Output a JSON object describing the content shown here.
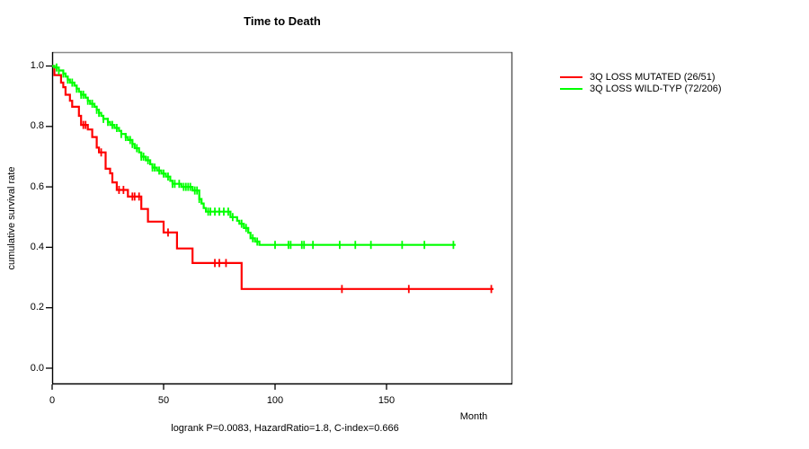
{
  "title": "Time to Death",
  "footer": "logrank P=0.0083, HazardRatio=1.8, C-index=0.666",
  "axes": {
    "x": {
      "label": "Month",
      "ticks": [
        0,
        50,
        100,
        150
      ]
    },
    "y": {
      "label": "cumulative survival rate",
      "ticks": [
        1.0,
        0.8,
        0.6,
        0.4,
        0.2,
        0.0
      ]
    }
  },
  "legend": {
    "items": [
      {
        "label": "3Q LOSS MUTATED (26/51)",
        "color": "#ff0000"
      },
      {
        "label": "3Q LOSS WILD-TYP (72/206)",
        "color": "#00ff00"
      }
    ]
  },
  "chart_data": {
    "type": "line",
    "subtype": "kaplan-meier-step",
    "title": "Time to Death",
    "xlabel": "Month",
    "ylabel": "cumulative survival rate",
    "xlim": [
      0,
      206
    ],
    "ylim": [
      0.0,
      1.0
    ],
    "grid": false,
    "legend_position": "right-outside",
    "frame_colors": {
      "top": "#8a8a8a",
      "right": "#555555",
      "bottom": "#000000",
      "left": "#000000"
    },
    "stats": {
      "logrank_p": 0.0083,
      "hazard_ratio": 1.8,
      "c_index": 0.666
    },
    "series": [
      {
        "name": "3Q LOSS MUTATED (26/51)",
        "events": 26,
        "n": 51,
        "color": "#ff0000",
        "steps": [
          [
            0,
            1.0
          ],
          [
            1,
            0.97
          ],
          [
            4,
            0.945
          ],
          [
            5,
            0.93
          ],
          [
            6,
            0.905
          ],
          [
            8,
            0.885
          ],
          [
            9,
            0.865
          ],
          [
            12,
            0.835
          ],
          [
            13,
            0.805
          ],
          [
            16,
            0.79
          ],
          [
            18,
            0.765
          ],
          [
            20,
            0.73
          ],
          [
            21,
            0.714
          ],
          [
            24,
            0.66
          ],
          [
            26,
            0.645
          ],
          [
            27,
            0.615
          ],
          [
            29,
            0.59
          ],
          [
            34,
            0.568
          ],
          [
            40,
            0.527
          ],
          [
            43,
            0.485
          ],
          [
            50,
            0.449
          ],
          [
            56,
            0.396
          ],
          [
            63,
            0.348
          ],
          [
            85,
            0.262
          ]
        ],
        "end_time": 198,
        "censor_times": [
          14,
          15,
          22,
          30,
          32,
          36,
          37,
          39,
          52,
          73,
          75,
          78,
          130,
          160,
          197
        ]
      },
      {
        "name": "3Q LOSS WILD-TYP (72/206)",
        "events": 72,
        "n": 206,
        "color": "#00ff00",
        "steps": [
          [
            0,
            1.0
          ],
          [
            1,
            0.995
          ],
          [
            3,
            0.985
          ],
          [
            5,
            0.975
          ],
          [
            6,
            0.965
          ],
          [
            7,
            0.955
          ],
          [
            8,
            0.945
          ],
          [
            10,
            0.935
          ],
          [
            11,
            0.925
          ],
          [
            12,
            0.915
          ],
          [
            13,
            0.905
          ],
          [
            15,
            0.895
          ],
          [
            16,
            0.885
          ],
          [
            17,
            0.875
          ],
          [
            19,
            0.865
          ],
          [
            20,
            0.855
          ],
          [
            21,
            0.845
          ],
          [
            22,
            0.835
          ],
          [
            23,
            0.825
          ],
          [
            25,
            0.815
          ],
          [
            26,
            0.805
          ],
          [
            28,
            0.795
          ],
          [
            30,
            0.785
          ],
          [
            31,
            0.775
          ],
          [
            33,
            0.765
          ],
          [
            34,
            0.755
          ],
          [
            36,
            0.742
          ],
          [
            37,
            0.728
          ],
          [
            39,
            0.714
          ],
          [
            40,
            0.7
          ],
          [
            42,
            0.688
          ],
          [
            44,
            0.675
          ],
          [
            45,
            0.664
          ],
          [
            47,
            0.654
          ],
          [
            49,
            0.644
          ],
          [
            51,
            0.634
          ],
          [
            53,
            0.62
          ],
          [
            54,
            0.61
          ],
          [
            58,
            0.6
          ],
          [
            63,
            0.588
          ],
          [
            66,
            0.56
          ],
          [
            67,
            0.545
          ],
          [
            68,
            0.53
          ],
          [
            69,
            0.518
          ],
          [
            80,
            0.5
          ],
          [
            83,
            0.488
          ],
          [
            84,
            0.478
          ],
          [
            86,
            0.464
          ],
          [
            88,
            0.448
          ],
          [
            89,
            0.43
          ],
          [
            91,
            0.419
          ],
          [
            93,
            0.408
          ]
        ],
        "end_time": 181,
        "censor_times": [
          2,
          3,
          5,
          7,
          9,
          11,
          13,
          14,
          16,
          18,
          20,
          21,
          23,
          25,
          27,
          29,
          31,
          33,
          35,
          36,
          38,
          40,
          41,
          43,
          45,
          46,
          48,
          50,
          52,
          54,
          55,
          57,
          59,
          60,
          61,
          62,
          64,
          65,
          66,
          70,
          71,
          73,
          75,
          77,
          79,
          81,
          85,
          87,
          90,
          92,
          100,
          106,
          107,
          112,
          113,
          117,
          129,
          136,
          143,
          157,
          167,
          180
        ]
      }
    ]
  }
}
